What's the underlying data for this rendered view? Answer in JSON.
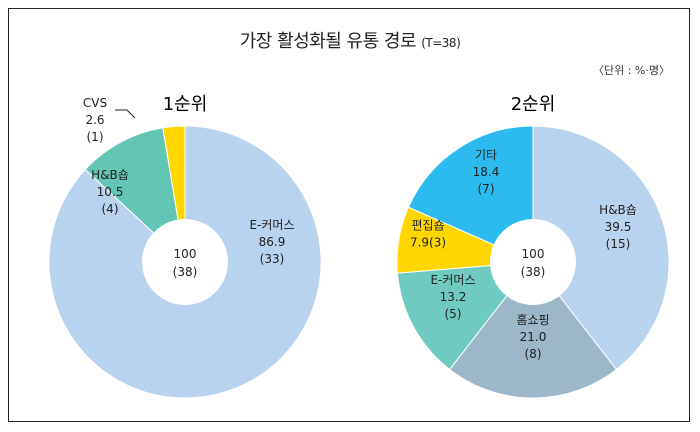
{
  "title": "가장 활성화될 유통 경로",
  "title_note": "(T=38)",
  "unit": "〈단위 : %·명〉",
  "colors": {
    "ecommerce": "#b9d2ee",
    "hb": "#63c6b5",
    "cvs": "#ffd600",
    "homeshopping": "#9db6c8",
    "editshop": "#ffd600",
    "etc": "#2bbbee",
    "e_commerce2": "#6fcbc0"
  },
  "chart_data": [
    {
      "type": "pie",
      "title": "1순위",
      "center": [
        "100",
        "(38)"
      ],
      "slices": [
        {
          "name": "E-커머스",
          "value": 86.9,
          "count": "(33)",
          "color": "#b9d2ee"
        },
        {
          "name": "H&B숍",
          "value": 10.5,
          "count": "(4)",
          "color": "#63c6b5"
        },
        {
          "name": "CVS",
          "value": 2.6,
          "count": "(1)",
          "color": "#ffd600"
        }
      ]
    },
    {
      "type": "pie",
      "title": "2순위",
      "center": [
        "100",
        "(38)"
      ],
      "slices": [
        {
          "name": "H&B숍",
          "value": 39.5,
          "count": "(15)",
          "color": "#b9d2ee"
        },
        {
          "name": "홈쇼핑",
          "value": 21.0,
          "count": "(8)",
          "color": "#9db6c8"
        },
        {
          "name": "E-커머스",
          "value": 13.2,
          "count": "(5)",
          "color": "#6fcbc0"
        },
        {
          "name": "편집숍",
          "value": 7.9,
          "count": "(3)",
          "color": "#ffd600"
        },
        {
          "name": "기타",
          "value": 18.4,
          "count": "(7)",
          "color": "#2bbbee"
        }
      ]
    }
  ]
}
